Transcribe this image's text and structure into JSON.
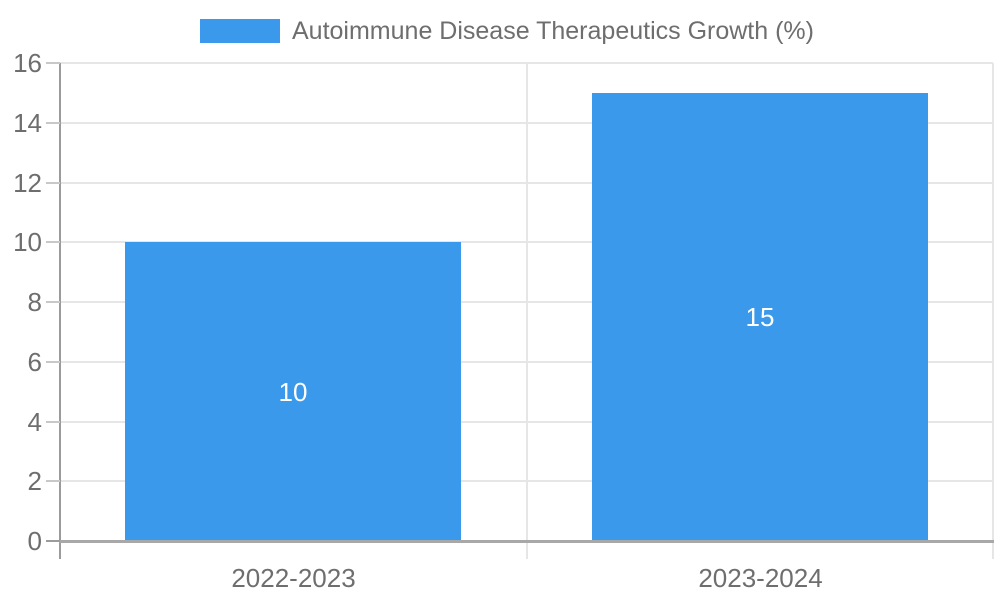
{
  "legend": {
    "label": "Autoimmune Disease Therapeutics Growth (%)"
  },
  "colors": {
    "bar": "#3b99ec",
    "bar_label": "#ffffff",
    "axis_text": "#6e6e6e",
    "legend_text": "#6e6e6e",
    "grid": "#e6e6e6",
    "y_axis_line": "#9b9b9b",
    "x_axis_line": "#a8a8a8",
    "tick": "#c8c8c8",
    "background": "#ffffff"
  },
  "chart_data": {
    "type": "bar",
    "title": "Autoimmune Disease Therapeutics Growth (%)",
    "categories": [
      "2022-2023",
      "2023-2024"
    ],
    "values": [
      10,
      15
    ],
    "data_labels": [
      "10",
      "15"
    ],
    "xlabel": "",
    "ylabel": "",
    "ylim": [
      0,
      16
    ],
    "yticks": [
      0,
      2,
      4,
      6,
      8,
      10,
      12,
      14,
      16
    ],
    "grid": "horizontal",
    "legend_position": "top-center",
    "bar_color": "#3b99ec"
  }
}
